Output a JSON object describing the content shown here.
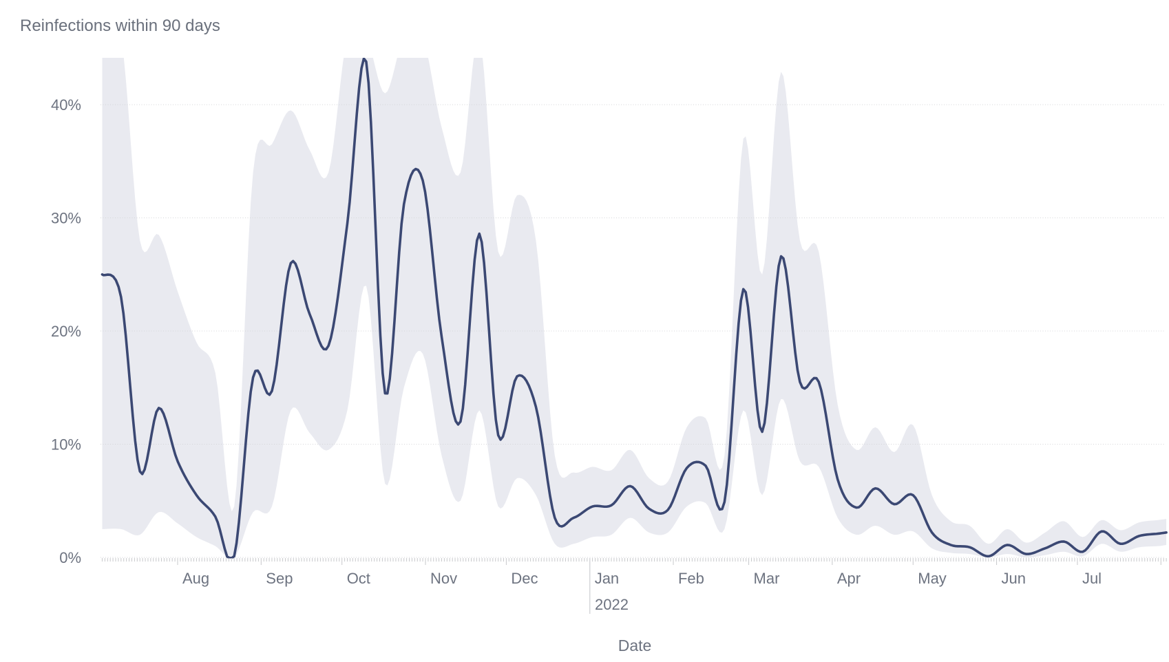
{
  "chart": {
    "title": "Reinfections within 90 days",
    "xlabel": "Date",
    "year_label": "2022"
  },
  "chart_data": {
    "type": "line",
    "subtype": "line-with-confidence-band",
    "title": "Reinfections within 90 days",
    "xlabel": "Date",
    "ylabel": "",
    "x_domain": [
      "2021-07-01",
      "2022-08-03"
    ],
    "ylim": [
      0,
      44
    ],
    "grid": true,
    "legend": "none",
    "minor_ticks": "daily",
    "y_ticks": [
      {
        "value": 0,
        "label": "0%"
      },
      {
        "value": 10,
        "label": "10%"
      },
      {
        "value": 20,
        "label": "20%"
      },
      {
        "value": 30,
        "label": "30%"
      },
      {
        "value": 40,
        "label": "40%"
      }
    ],
    "x_ticks": [
      {
        "date": "2021-08-01",
        "label": "Aug"
      },
      {
        "date": "2021-09-01",
        "label": "Sep"
      },
      {
        "date": "2021-10-01",
        "label": "Oct"
      },
      {
        "date": "2021-11-01",
        "label": "Nov"
      },
      {
        "date": "2021-12-01",
        "label": "Dec"
      },
      {
        "date": "2022-01-01",
        "label": "Jan"
      },
      {
        "date": "2022-02-01",
        "label": "Feb"
      },
      {
        "date": "2022-03-01",
        "label": "Mar"
      },
      {
        "date": "2022-04-01",
        "label": "Apr"
      },
      {
        "date": "2022-05-01",
        "label": "May"
      },
      {
        "date": "2022-06-01",
        "label": "Jun"
      },
      {
        "date": "2022-07-01",
        "label": "Jul"
      }
    ],
    "year_annotation": {
      "date": "2022-01-01",
      "label": "2022"
    },
    "dates": [
      "2021-07-04",
      "2021-07-11",
      "2021-07-18",
      "2021-07-25",
      "2021-08-01",
      "2021-08-08",
      "2021-08-15",
      "2021-08-22",
      "2021-08-29",
      "2021-09-05",
      "2021-09-12",
      "2021-09-19",
      "2021-09-26",
      "2021-10-03",
      "2021-10-10",
      "2021-10-17",
      "2021-10-24",
      "2021-10-31",
      "2021-11-07",
      "2021-11-14",
      "2021-11-21",
      "2021-11-28",
      "2021-12-05",
      "2021-12-12",
      "2021-12-19",
      "2021-12-26",
      "2022-01-02",
      "2022-01-09",
      "2022-01-16",
      "2022-01-23",
      "2022-01-30",
      "2022-02-06",
      "2022-02-13",
      "2022-02-20",
      "2022-02-27",
      "2022-03-06",
      "2022-03-13",
      "2022-03-20",
      "2022-03-27",
      "2022-04-03",
      "2022-04-10",
      "2022-04-17",
      "2022-04-24",
      "2022-05-01",
      "2022-05-08",
      "2022-05-15",
      "2022-05-22",
      "2022-05-29",
      "2022-06-05",
      "2022-06-12",
      "2022-06-19",
      "2022-06-26",
      "2022-07-03",
      "2022-07-10",
      "2022-07-17",
      "2022-07-24",
      "2022-07-31",
      "2022-08-03"
    ],
    "series": [
      {
        "name": "Reinfections within 90 days (%)",
        "values": [
          25.0,
          23.0,
          7.6,
          13.2,
          8.5,
          5.5,
          3.6,
          0.1,
          15.9,
          14.7,
          26.0,
          21.5,
          18.7,
          29.5,
          43.8,
          14.5,
          31.2,
          33.3,
          19.5,
          12.0,
          28.6,
          10.8,
          16.0,
          13.3,
          3.5,
          3.5,
          4.5,
          4.6,
          6.3,
          4.3,
          4.2,
          7.9,
          8.1,
          4.9,
          23.7,
          11.1,
          26.6,
          15.5,
          15.5,
          6.9,
          4.4,
          6.1,
          4.7,
          5.5,
          2.2,
          1.1,
          0.9,
          0.1,
          1.1,
          0.3,
          0.8,
          1.4,
          0.5,
          2.3,
          1.2,
          1.9,
          2.1,
          2.2
        ]
      },
      {
        "name": "Confidence band upper (%)",
        "values": [
          46,
          46,
          28,
          28.5,
          23.5,
          19,
          16.3,
          4.5,
          34,
          36.5,
          39.5,
          36,
          34,
          46,
          46,
          41,
          46,
          46,
          38,
          34,
          46,
          27,
          32,
          28,
          9,
          7.5,
          8,
          7.7,
          9.5,
          7,
          6.7,
          11.5,
          12.3,
          9,
          37,
          25,
          42.9,
          28,
          27,
          13.5,
          9.5,
          11.5,
          9.3,
          11.7,
          5.5,
          3.2,
          2.8,
          1.2,
          2.5,
          1.3,
          2.2,
          3.2,
          1.8,
          3.3,
          2.4,
          3.1,
          3.3,
          3.4
        ]
      },
      {
        "name": "Confidence band lower (%)",
        "values": [
          2.5,
          2.5,
          2.0,
          4.0,
          3.0,
          1.8,
          1.0,
          0.0,
          4.0,
          4.5,
          13,
          11,
          9.5,
          13,
          24,
          6.5,
          15,
          18,
          9,
          5,
          13,
          4.5,
          7,
          5.5,
          1.2,
          1.2,
          1.8,
          2.0,
          3.5,
          2.2,
          2.2,
          4.5,
          4.8,
          2.5,
          13,
          5.5,
          14,
          8.5,
          8,
          3.5,
          2.0,
          2.8,
          2.0,
          2.3,
          0.8,
          0.4,
          0.3,
          0.0,
          0.3,
          0.0,
          0.2,
          0.5,
          0.1,
          1.2,
          0.5,
          0.9,
          1.0,
          1.1
        ]
      }
    ],
    "colors": {
      "line": "#3b4873",
      "band": "#e9eaf0",
      "grid": "#d4d5d8",
      "tick": "#c7c8cb",
      "year_line": "#d6d7da",
      "text": "#6d7380",
      "title": "#6a707c",
      "background": "#ffffff"
    }
  }
}
